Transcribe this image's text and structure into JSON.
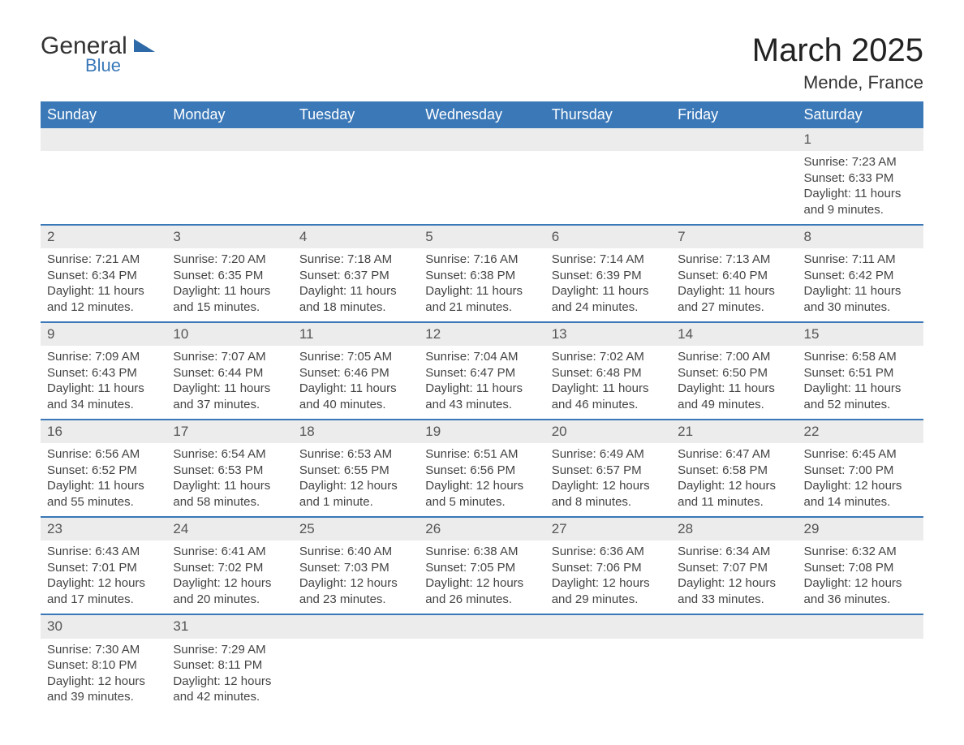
{
  "logo": {
    "text1": "General",
    "text2": "Blue",
    "tri_color": "#2f6aa8"
  },
  "header": {
    "title": "March 2025",
    "location": "Mende, France"
  },
  "colors": {
    "header_bg": "#3a78b8",
    "header_text": "#ffffff",
    "daynum_bg": "#ececec",
    "row_border": "#3a78b8",
    "body_text": "#444444"
  },
  "day_labels": [
    "Sunday",
    "Monday",
    "Tuesday",
    "Wednesday",
    "Thursday",
    "Friday",
    "Saturday"
  ],
  "weeks": [
    [
      null,
      null,
      null,
      null,
      null,
      null,
      {
        "n": "1",
        "sr": "Sunrise: 7:23 AM",
        "ss": "Sunset: 6:33 PM",
        "d1": "Daylight: 11 hours",
        "d2": "and 9 minutes."
      }
    ],
    [
      {
        "n": "2",
        "sr": "Sunrise: 7:21 AM",
        "ss": "Sunset: 6:34 PM",
        "d1": "Daylight: 11 hours",
        "d2": "and 12 minutes."
      },
      {
        "n": "3",
        "sr": "Sunrise: 7:20 AM",
        "ss": "Sunset: 6:35 PM",
        "d1": "Daylight: 11 hours",
        "d2": "and 15 minutes."
      },
      {
        "n": "4",
        "sr": "Sunrise: 7:18 AM",
        "ss": "Sunset: 6:37 PM",
        "d1": "Daylight: 11 hours",
        "d2": "and 18 minutes."
      },
      {
        "n": "5",
        "sr": "Sunrise: 7:16 AM",
        "ss": "Sunset: 6:38 PM",
        "d1": "Daylight: 11 hours",
        "d2": "and 21 minutes."
      },
      {
        "n": "6",
        "sr": "Sunrise: 7:14 AM",
        "ss": "Sunset: 6:39 PM",
        "d1": "Daylight: 11 hours",
        "d2": "and 24 minutes."
      },
      {
        "n": "7",
        "sr": "Sunrise: 7:13 AM",
        "ss": "Sunset: 6:40 PM",
        "d1": "Daylight: 11 hours",
        "d2": "and 27 minutes."
      },
      {
        "n": "8",
        "sr": "Sunrise: 7:11 AM",
        "ss": "Sunset: 6:42 PM",
        "d1": "Daylight: 11 hours",
        "d2": "and 30 minutes."
      }
    ],
    [
      {
        "n": "9",
        "sr": "Sunrise: 7:09 AM",
        "ss": "Sunset: 6:43 PM",
        "d1": "Daylight: 11 hours",
        "d2": "and 34 minutes."
      },
      {
        "n": "10",
        "sr": "Sunrise: 7:07 AM",
        "ss": "Sunset: 6:44 PM",
        "d1": "Daylight: 11 hours",
        "d2": "and 37 minutes."
      },
      {
        "n": "11",
        "sr": "Sunrise: 7:05 AM",
        "ss": "Sunset: 6:46 PM",
        "d1": "Daylight: 11 hours",
        "d2": "and 40 minutes."
      },
      {
        "n": "12",
        "sr": "Sunrise: 7:04 AM",
        "ss": "Sunset: 6:47 PM",
        "d1": "Daylight: 11 hours",
        "d2": "and 43 minutes."
      },
      {
        "n": "13",
        "sr": "Sunrise: 7:02 AM",
        "ss": "Sunset: 6:48 PM",
        "d1": "Daylight: 11 hours",
        "d2": "and 46 minutes."
      },
      {
        "n": "14",
        "sr": "Sunrise: 7:00 AM",
        "ss": "Sunset: 6:50 PM",
        "d1": "Daylight: 11 hours",
        "d2": "and 49 minutes."
      },
      {
        "n": "15",
        "sr": "Sunrise: 6:58 AM",
        "ss": "Sunset: 6:51 PM",
        "d1": "Daylight: 11 hours",
        "d2": "and 52 minutes."
      }
    ],
    [
      {
        "n": "16",
        "sr": "Sunrise: 6:56 AM",
        "ss": "Sunset: 6:52 PM",
        "d1": "Daylight: 11 hours",
        "d2": "and 55 minutes."
      },
      {
        "n": "17",
        "sr": "Sunrise: 6:54 AM",
        "ss": "Sunset: 6:53 PM",
        "d1": "Daylight: 11 hours",
        "d2": "and 58 minutes."
      },
      {
        "n": "18",
        "sr": "Sunrise: 6:53 AM",
        "ss": "Sunset: 6:55 PM",
        "d1": "Daylight: 12 hours",
        "d2": "and 1 minute."
      },
      {
        "n": "19",
        "sr": "Sunrise: 6:51 AM",
        "ss": "Sunset: 6:56 PM",
        "d1": "Daylight: 12 hours",
        "d2": "and 5 minutes."
      },
      {
        "n": "20",
        "sr": "Sunrise: 6:49 AM",
        "ss": "Sunset: 6:57 PM",
        "d1": "Daylight: 12 hours",
        "d2": "and 8 minutes."
      },
      {
        "n": "21",
        "sr": "Sunrise: 6:47 AM",
        "ss": "Sunset: 6:58 PM",
        "d1": "Daylight: 12 hours",
        "d2": "and 11 minutes."
      },
      {
        "n": "22",
        "sr": "Sunrise: 6:45 AM",
        "ss": "Sunset: 7:00 PM",
        "d1": "Daylight: 12 hours",
        "d2": "and 14 minutes."
      }
    ],
    [
      {
        "n": "23",
        "sr": "Sunrise: 6:43 AM",
        "ss": "Sunset: 7:01 PM",
        "d1": "Daylight: 12 hours",
        "d2": "and 17 minutes."
      },
      {
        "n": "24",
        "sr": "Sunrise: 6:41 AM",
        "ss": "Sunset: 7:02 PM",
        "d1": "Daylight: 12 hours",
        "d2": "and 20 minutes."
      },
      {
        "n": "25",
        "sr": "Sunrise: 6:40 AM",
        "ss": "Sunset: 7:03 PM",
        "d1": "Daylight: 12 hours",
        "d2": "and 23 minutes."
      },
      {
        "n": "26",
        "sr": "Sunrise: 6:38 AM",
        "ss": "Sunset: 7:05 PM",
        "d1": "Daylight: 12 hours",
        "d2": "and 26 minutes."
      },
      {
        "n": "27",
        "sr": "Sunrise: 6:36 AM",
        "ss": "Sunset: 7:06 PM",
        "d1": "Daylight: 12 hours",
        "d2": "and 29 minutes."
      },
      {
        "n": "28",
        "sr": "Sunrise: 6:34 AM",
        "ss": "Sunset: 7:07 PM",
        "d1": "Daylight: 12 hours",
        "d2": "and 33 minutes."
      },
      {
        "n": "29",
        "sr": "Sunrise: 6:32 AM",
        "ss": "Sunset: 7:08 PM",
        "d1": "Daylight: 12 hours",
        "d2": "and 36 minutes."
      }
    ],
    [
      {
        "n": "30",
        "sr": "Sunrise: 7:30 AM",
        "ss": "Sunset: 8:10 PM",
        "d1": "Daylight: 12 hours",
        "d2": "and 39 minutes."
      },
      {
        "n": "31",
        "sr": "Sunrise: 7:29 AM",
        "ss": "Sunset: 8:11 PM",
        "d1": "Daylight: 12 hours",
        "d2": "and 42 minutes."
      },
      null,
      null,
      null,
      null,
      null
    ]
  ]
}
